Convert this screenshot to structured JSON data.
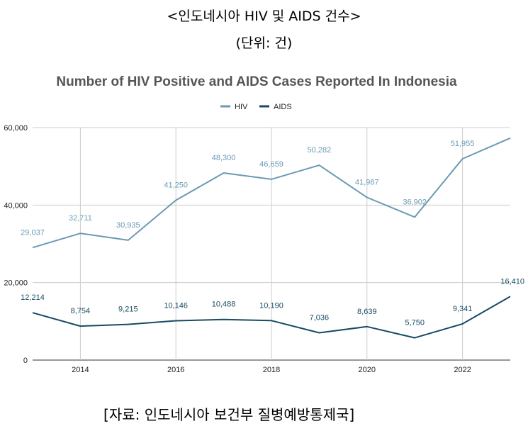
{
  "header": {
    "title": "<인도네시아 HIV 및 AIDS 건수>",
    "unit": "(단위: 건)"
  },
  "source": "[자료: 인도네시아 보건부 질병예방통제국]",
  "chart_data": {
    "type": "line",
    "title": "Number of HIV Positive and AIDS Cases Reported In Indonesia",
    "xlabel": "",
    "ylabel": "",
    "x": [
      2013,
      2014,
      2015,
      2016,
      2017,
      2018,
      2019,
      2020,
      2021,
      2022,
      2023
    ],
    "x_ticks": [
      "2014",
      "2016",
      "2018",
      "2020",
      "2022"
    ],
    "x_tick_values": [
      2014,
      2016,
      2018,
      2020,
      2022
    ],
    "y_ticks": [
      "0",
      "20,000",
      "40,000",
      "60,000"
    ],
    "y_tick_values": [
      0,
      20000,
      40000,
      60000
    ],
    "ylim": [
      0,
      60000
    ],
    "grid": true,
    "legend_position": "top",
    "series": [
      {
        "name": "HIV",
        "color": "#6a9ab4",
        "values": [
          29037,
          32711,
          30935,
          41250,
          48300,
          46659,
          50282,
          41987,
          36902,
          51955,
          57299
        ],
        "data_labels": [
          "29,037",
          "32,711",
          "30,935",
          "41,250",
          "48,300",
          "46,659",
          "50,282",
          "41,987",
          "36,902",
          "51,955",
          ""
        ]
      },
      {
        "name": "AIDS",
        "color": "#174b63",
        "values": [
          12214,
          8754,
          9215,
          10146,
          10488,
          10190,
          7036,
          8639,
          5750,
          9341,
          16410
        ],
        "data_labels": [
          "12,214",
          "8,754",
          "9,215",
          "10,146",
          "10,488",
          "10,190",
          "7,036",
          "8,639",
          "5,750",
          "9,341",
          "16,410"
        ]
      }
    ]
  }
}
